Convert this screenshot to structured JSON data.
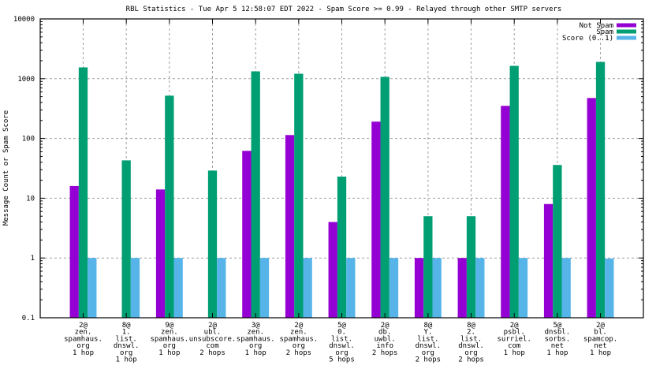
{
  "chart_data": {
    "type": "bar",
    "title": "RBL Statistics - Tue Apr  5 12:58:07 EDT 2022 - Spam Score >= 0.99 - Relayed through other SMTP servers",
    "xlabel": "",
    "ylabel": "Message Count or Spam Score",
    "yscale": "log",
    "ylim": [
      0.1,
      10000
    ],
    "yticks": [
      0.1,
      1,
      10,
      100,
      1000,
      10000
    ],
    "ytick_labels": [
      "0.1",
      "1",
      "10",
      "100",
      "1000",
      "10000"
    ],
    "grid": true,
    "legend_position": "top-right",
    "categories": [
      [
        "2@",
        "zen.",
        "spamhaus.",
        "org",
        "1 hop"
      ],
      [
        "8@",
        "1.",
        "list.",
        "dnswl.",
        "org",
        "1 hop"
      ],
      [
        "9@",
        "zen.",
        "spamhaus.",
        "org",
        "1 hop"
      ],
      [
        "2@",
        "ubl.",
        "unsubscore.",
        "com",
        "2 hops"
      ],
      [
        "3@",
        "zen.",
        "spamhaus.",
        "org",
        "1 hop"
      ],
      [
        "2@",
        "zen.",
        "spamhaus.",
        "org",
        "2 hops"
      ],
      [
        "5@",
        "0.",
        "list.",
        "dnswl.",
        "org",
        "5 hops"
      ],
      [
        "2@",
        "db.",
        "uwbl.",
        "info",
        "2 hops"
      ],
      [
        "8@",
        "Y.",
        "list.",
        "dnswl.",
        "org",
        "2 hops"
      ],
      [
        "8@",
        "2.",
        "list.",
        "dnswl.",
        "org",
        "2 hops"
      ],
      [
        "2@",
        "psbl.",
        "surriel.",
        "com",
        "1 hop"
      ],
      [
        "5@",
        "dnsbl.",
        "sorbs.",
        "net",
        "1 hop"
      ],
      [
        "2@",
        "bl.",
        "spamcop.",
        "net",
        "1 hop"
      ]
    ],
    "series": [
      {
        "name": "Not Spam",
        "color": "#9400d3",
        "values": [
          16,
          null,
          14,
          null,
          62,
          114,
          4,
          191,
          1,
          1,
          351,
          8,
          475
        ]
      },
      {
        "name": "Spam",
        "color": "#009e73",
        "values": [
          1545,
          43,
          520,
          29,
          1327,
          1210,
          23,
          1073,
          5,
          5,
          1640,
          36,
          1910
        ]
      },
      {
        "name": "Score (0..1)",
        "color": "#56b4e9",
        "values": [
          1,
          1,
          1,
          1,
          1,
          1,
          1,
          1,
          1,
          1,
          1,
          1,
          0.98
        ]
      }
    ]
  }
}
